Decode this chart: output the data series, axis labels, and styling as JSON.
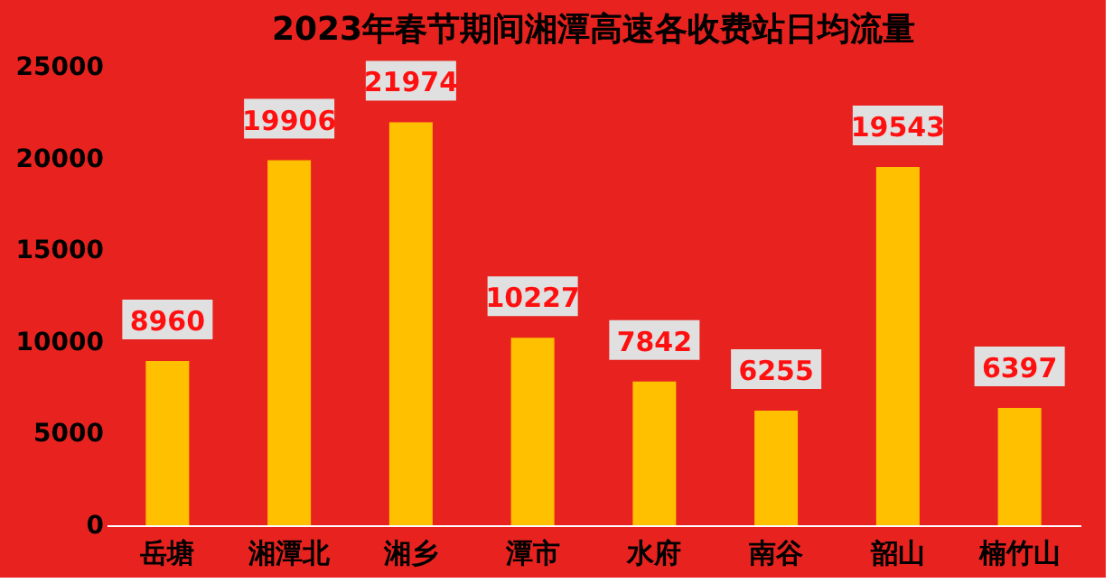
{
  "chart_data": {
    "type": "bar",
    "title": "2023年春节期间湘潭高速各收费站日均流量",
    "categories": [
      "岳塘",
      "湘潭北",
      "湘乡",
      "潭市",
      "水府",
      "南谷",
      "韶山",
      "楠竹山"
    ],
    "values": [
      8960,
      19906,
      21974,
      10227,
      7842,
      6255,
      19543,
      6397
    ],
    "color": "#ffc000",
    "ylim": [
      0,
      25000
    ],
    "yticks": [
      0,
      5000,
      10000,
      15000,
      20000,
      25000
    ],
    "grid": false,
    "data_labels": true
  }
}
